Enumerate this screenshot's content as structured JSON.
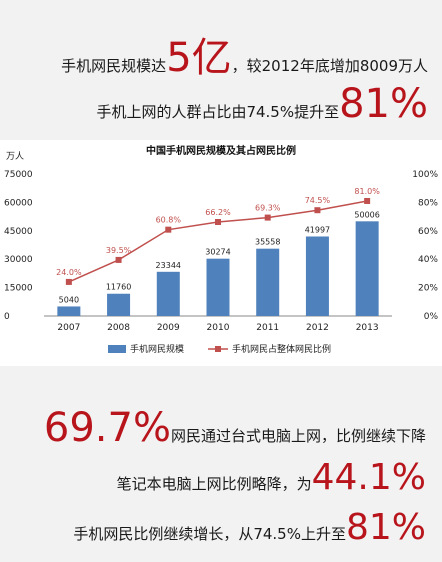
{
  "headline": {
    "line1_pre": "手机网民规模达",
    "line1_big": "5亿",
    "line1_post": "，较2012年底增加8009万人",
    "line2_pre": "手机上网的人群占比由74.5%提升至",
    "line2_big": "81%"
  },
  "chart_data": {
    "type": "bar",
    "title": "中国手机网民规模及其占网民比例",
    "left_unit": "万人",
    "categories": [
      "2007",
      "2008",
      "2009",
      "2010",
      "2011",
      "2012",
      "2013"
    ],
    "series": [
      {
        "name": "手机网民规模",
        "type": "bar",
        "axis": "left",
        "values": [
          5040,
          11760,
          23344,
          30274,
          35558,
          41997,
          50006
        ],
        "labels": [
          "5040",
          "11760",
          "23344",
          "30274",
          "35558",
          "41997",
          "50006"
        ],
        "color": "#4f81bd"
      },
      {
        "name": "手机网民占整体网民比例",
        "type": "line",
        "axis": "right",
        "values": [
          24.0,
          39.5,
          60.8,
          66.2,
          69.3,
          74.5,
          81.0
        ],
        "labels": [
          "24.0%",
          "39.5%",
          "60.8%",
          "66.2%",
          "69.3%",
          "74.5%",
          "81.0%"
        ],
        "color": "#c0504d"
      }
    ],
    "ylim_left": [
      0,
      75000
    ],
    "yticks_left": [
      "0",
      "15000",
      "30000",
      "45000",
      "60000",
      "75000"
    ],
    "ylim_right": [
      0,
      100
    ],
    "yticks_right": [
      "0%",
      "20%",
      "40%",
      "60%",
      "80%",
      "100%"
    ],
    "grid": false,
    "legend_position": "bottom"
  },
  "footer": {
    "line1_big": "69.7%",
    "line1_post": "网民通过台式电脑上网，比例继续下降",
    "line2_pre": "笔记本电脑上网比例略降，为",
    "line2_big": "44.1%",
    "line3_pre": "手机网民比例继续增长，从74.5%上升至",
    "line3_big": "81%"
  }
}
